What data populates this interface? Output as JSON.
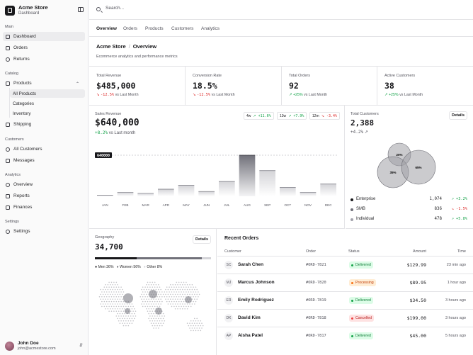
{
  "brand": {
    "name": "Acme Store",
    "subtitle": "Dashboard"
  },
  "sidebar": {
    "sections": [
      {
        "label": "Main"
      },
      {
        "label": "Catalog"
      },
      {
        "label": "Customers"
      },
      {
        "label": "Analytics"
      },
      {
        "label": "Settings"
      }
    ],
    "items": {
      "dashboard": "Dashboard",
      "orders": "Orders",
      "returns": "Returns",
      "products": "Products",
      "all_products": "All Products",
      "categories": "Categories",
      "inventory": "Inventory",
      "shipping": "Shipping",
      "all_customers": "All Customers",
      "messages": "Messages",
      "overview": "Overview",
      "reports": "Reports",
      "finances": "Finances",
      "settings": "Settings"
    }
  },
  "user": {
    "name": "John Doe",
    "email": "john@acmestore.com"
  },
  "search": {
    "placeholder": "Search..."
  },
  "tabs": [
    "Overview",
    "Orders",
    "Products",
    "Customers",
    "Analytics"
  ],
  "header": {
    "store": "Acme Store",
    "sep": "/",
    "page": "Overview",
    "description": "Ecommerce analytics and performance metrics"
  },
  "stats": [
    {
      "label": "Total Revenue",
      "value": "$485,000",
      "delta": "-12.5%",
      "suffix": "vs Last Month",
      "trend": "down"
    },
    {
      "label": "Conversion Rate",
      "value": "18.5%",
      "delta": "-12.5%",
      "suffix": "vs Last Month",
      "trend": "down"
    },
    {
      "label": "Total Orders",
      "value": "92",
      "delta": "+25%",
      "suffix": "vs Last Month",
      "trend": "up"
    },
    {
      "label": "Active Customers",
      "value": "38",
      "delta": "+25%",
      "suffix": "vs Last Month",
      "trend": "up"
    }
  ],
  "sales": {
    "label": "Sales Revenue",
    "value": "$640,000",
    "delta": "+8.2%",
    "suffix": "vs Last month",
    "ranges": [
      {
        "label": "4w",
        "delta": "+11.6%",
        "trend": "up"
      },
      {
        "label": "13w",
        "delta": "+7.9%",
        "trend": "up"
      },
      {
        "label": "12m",
        "delta": "-3.4%",
        "trend": "down"
      }
    ],
    "max_label": "640000"
  },
  "chart_data": {
    "type": "bar",
    "categories": [
      "JAN",
      "FEB",
      "MAR",
      "APR",
      "MAY",
      "JUN",
      "JUL",
      "AUG",
      "SEP",
      "OCT",
      "NOV",
      "DEC"
    ],
    "values": [
      15000,
      60000,
      45000,
      110000,
      170000,
      75000,
      230000,
      640000,
      400000,
      140000,
      60000,
      190000
    ],
    "ylim": [
      0,
      640000
    ],
    "highlight": "AUG"
  },
  "customers": {
    "label": "Total Customers",
    "value": "2,388",
    "delta": "+4.2%",
    "details": "Details",
    "venn": [
      "20%",
      "35%",
      "65%"
    ],
    "segments": [
      {
        "name": "Enterprise",
        "value": "1,074",
        "delta": "+3.2%",
        "trend": "up",
        "color": "#18181b"
      },
      {
        "name": "SMB",
        "value": "836",
        "delta": "-1.5%",
        "trend": "down",
        "color": "#71717a"
      },
      {
        "name": "Individual",
        "value": "478",
        "delta": "+5.8%",
        "trend": "up",
        "color": "#a1a1aa"
      }
    ]
  },
  "geography": {
    "label": "Geography",
    "value": "34,700",
    "details": "Details",
    "legend": [
      {
        "label": "Men 36%",
        "share": 0.36,
        "color": "#18181b"
      },
      {
        "label": "Women 56%",
        "share": 0.56,
        "color": "#71717a"
      },
      {
        "label": "Other 8%",
        "share": 0.08,
        "color": "#d4d4d8"
      }
    ]
  },
  "orders": {
    "title": "Recent Orders",
    "columns": [
      "Customer",
      "Order",
      "Status",
      "Amount",
      "Time"
    ],
    "rows": [
      {
        "initials": "SC",
        "name": "Sarah Chen",
        "id": "#ORD-7821",
        "status": "Delivered",
        "amount": "$129.99",
        "time": "23 min ago"
      },
      {
        "initials": "MJ",
        "name": "Marcus Johnson",
        "id": "#ORD-7820",
        "status": "Processing",
        "amount": "$89.95",
        "time": "1 hour ago"
      },
      {
        "initials": "ER",
        "name": "Emily Rodriguez",
        "id": "#ORD-7819",
        "status": "Delivered",
        "amount": "$34.50",
        "time": "3 hours ago"
      },
      {
        "initials": "DK",
        "name": "David Kim",
        "id": "#ORD-7818",
        "status": "Cancelled",
        "amount": "$199.00",
        "time": "3 hours ago"
      },
      {
        "initials": "AP",
        "name": "Aisha Patel",
        "id": "#ORD-7817",
        "status": "Delivered",
        "amount": "$45.00",
        "time": "5 hours ago"
      }
    ],
    "status_colors": {
      "Delivered": {
        "bg": "#dcfce7",
        "fg": "#15803d",
        "dot": "#16a34a"
      },
      "Processing": {
        "bg": "#ffedd5",
        "fg": "#c2410c",
        "dot": "#f97316"
      },
      "Cancelled": {
        "bg": "#fee2e2",
        "fg": "#b91c1c",
        "dot": "#ef4444"
      }
    }
  }
}
